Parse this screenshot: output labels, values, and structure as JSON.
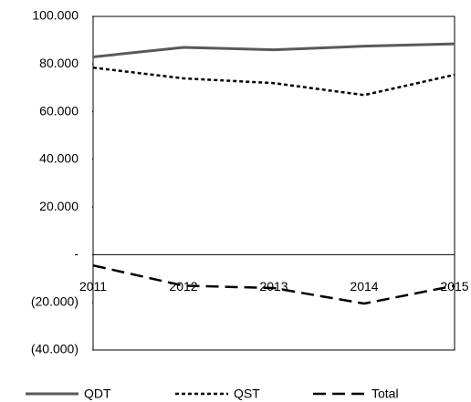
{
  "chart_data": {
    "type": "line",
    "x": [
      "2011",
      "2012",
      "2013",
      "2014",
      "2015"
    ],
    "series": [
      {
        "name": "QDT",
        "color": "#595959",
        "values": [
          83,
          87,
          86,
          87.5,
          88.5
        ]
      },
      {
        "name": "QST",
        "color": "#000000",
        "values": [
          78.5,
          74,
          72,
          67,
          75.5
        ]
      },
      {
        "name": "Total",
        "color": "#000000",
        "values": [
          -4.5,
          -13,
          -14,
          -20.5,
          -13
        ]
      }
    ],
    "ylim": [
      -40,
      100
    ],
    "yticks": [
      {
        "value": -40,
        "label": "(40.000)"
      },
      {
        "value": -20,
        "label": "(20.000)"
      },
      {
        "value": 0,
        "label": "-"
      },
      {
        "value": 20,
        "label": "20.000"
      },
      {
        "value": 40,
        "label": "40.000"
      },
      {
        "value": 60,
        "label": "60.000"
      },
      {
        "value": 80,
        "label": "80.000"
      },
      {
        "value": 100,
        "label": "100.000"
      }
    ],
    "legend": "bottom"
  }
}
